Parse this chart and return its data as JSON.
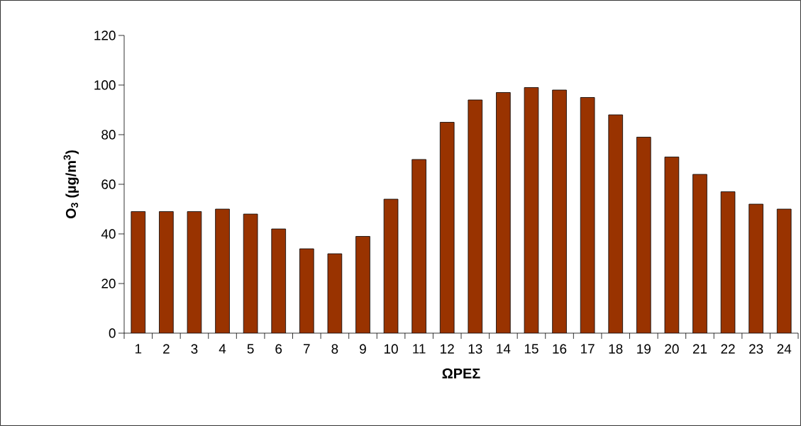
{
  "chart_data": {
    "type": "bar",
    "xlabel": "ΩΡΕΣ",
    "ylabel": "O$_{3}$ (µg/m$^{3}$)",
    "categories": [
      "1",
      "2",
      "3",
      "4",
      "5",
      "6",
      "7",
      "8",
      "9",
      "10",
      "11",
      "12",
      "13",
      "14",
      "15",
      "16",
      "17",
      "18",
      "19",
      "20",
      "21",
      "22",
      "23",
      "24"
    ],
    "values": [
      49,
      49,
      49,
      50,
      48,
      42,
      34,
      32,
      39,
      54,
      70,
      85,
      94,
      97,
      99,
      98,
      95,
      88,
      79,
      71,
      64,
      57,
      52,
      50
    ],
    "color": "#993300",
    "ylim": [
      0,
      120
    ],
    "yticks": [
      0,
      20,
      40,
      60,
      80,
      100,
      120
    ]
  }
}
